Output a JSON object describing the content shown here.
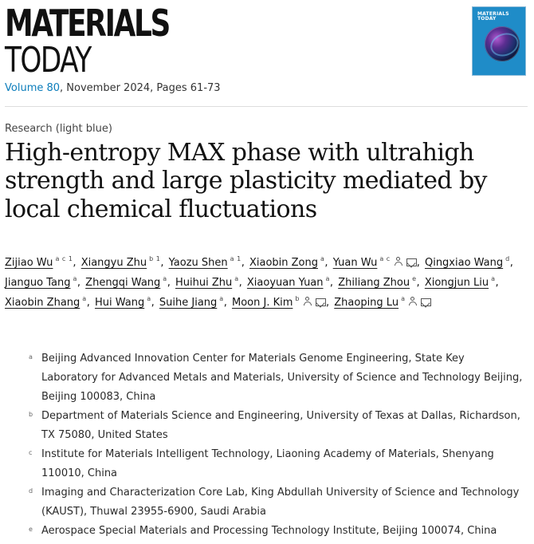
{
  "journal": {
    "name_line1": "MATERIALS",
    "name_line2": "TODAY",
    "volume_link": "Volume 80",
    "date_pages": ", November 2024, Pages 61-73",
    "cover": {
      "line1": "MATERIALS",
      "line2": "TODAY"
    }
  },
  "article": {
    "category": "Research (light blue)",
    "title": "High-entropy MAX phase with ultrahigh strength and large plasticity mediated by local chemical fluctuations"
  },
  "authors": [
    {
      "name": "Zijiao Wu",
      "sup": "a c 1"
    },
    {
      "name": "Xiangyu Zhu",
      "sup": "b 1"
    },
    {
      "name": "Yaozu Shen",
      "sup": "a 1"
    },
    {
      "name": "Xiaobin Zong",
      "sup": "a"
    },
    {
      "name": "Yuan Wu",
      "sup": "a c"
    },
    {
      "name": "Qingxiao Wang",
      "sup": "d"
    },
    {
      "name": "Jianguo Tang",
      "sup": "a"
    },
    {
      "name": "Zhengqi Wang",
      "sup": "a"
    },
    {
      "name": "Huihui Zhu",
      "sup": "a"
    },
    {
      "name": "Xiaoyuan Yuan",
      "sup": "a"
    },
    {
      "name": "Zhiliang Zhou",
      "sup": "e"
    },
    {
      "name": "Xiongjun Liu",
      "sup": "a"
    },
    {
      "name": "Xiaobin Zhang",
      "sup": "a"
    },
    {
      "name": "Hui Wang",
      "sup": "a"
    },
    {
      "name": "Suihe Jiang",
      "sup": "a"
    },
    {
      "name": "Moon J. Kim",
      "sup": "b"
    },
    {
      "name": "Zhaoping Lu",
      "sup": "a"
    }
  ],
  "affiliations": [
    {
      "marker": "a",
      "text": "Beijing Advanced Innovation Center for Materials Genome Engineering, State Key Laboratory for Advanced Metals and Materials, University of Science and Technology Beijing, Beijing 100083, China"
    },
    {
      "marker": "b",
      "text": "Department of Materials Science and Engineering, University of Texas at Dallas, Richardson, TX 75080, United States"
    },
    {
      "marker": "c",
      "text": "Institute for Materials Intelligent Technology, Liaoning Academy of Materials, Shenyang 110010, China"
    },
    {
      "marker": "d",
      "text": "Imaging and Characterization Core Lab, King Abdullah University of Science and Technology (KAUST), Thuwal 23955-6900, Saudi Arabia"
    },
    {
      "marker": "e",
      "text": "Aerospace Special Materials and Processing Technology Institute, Beijing 100074, China"
    }
  ],
  "icons": {
    "person": "person-icon",
    "mail": "mail-icon"
  }
}
